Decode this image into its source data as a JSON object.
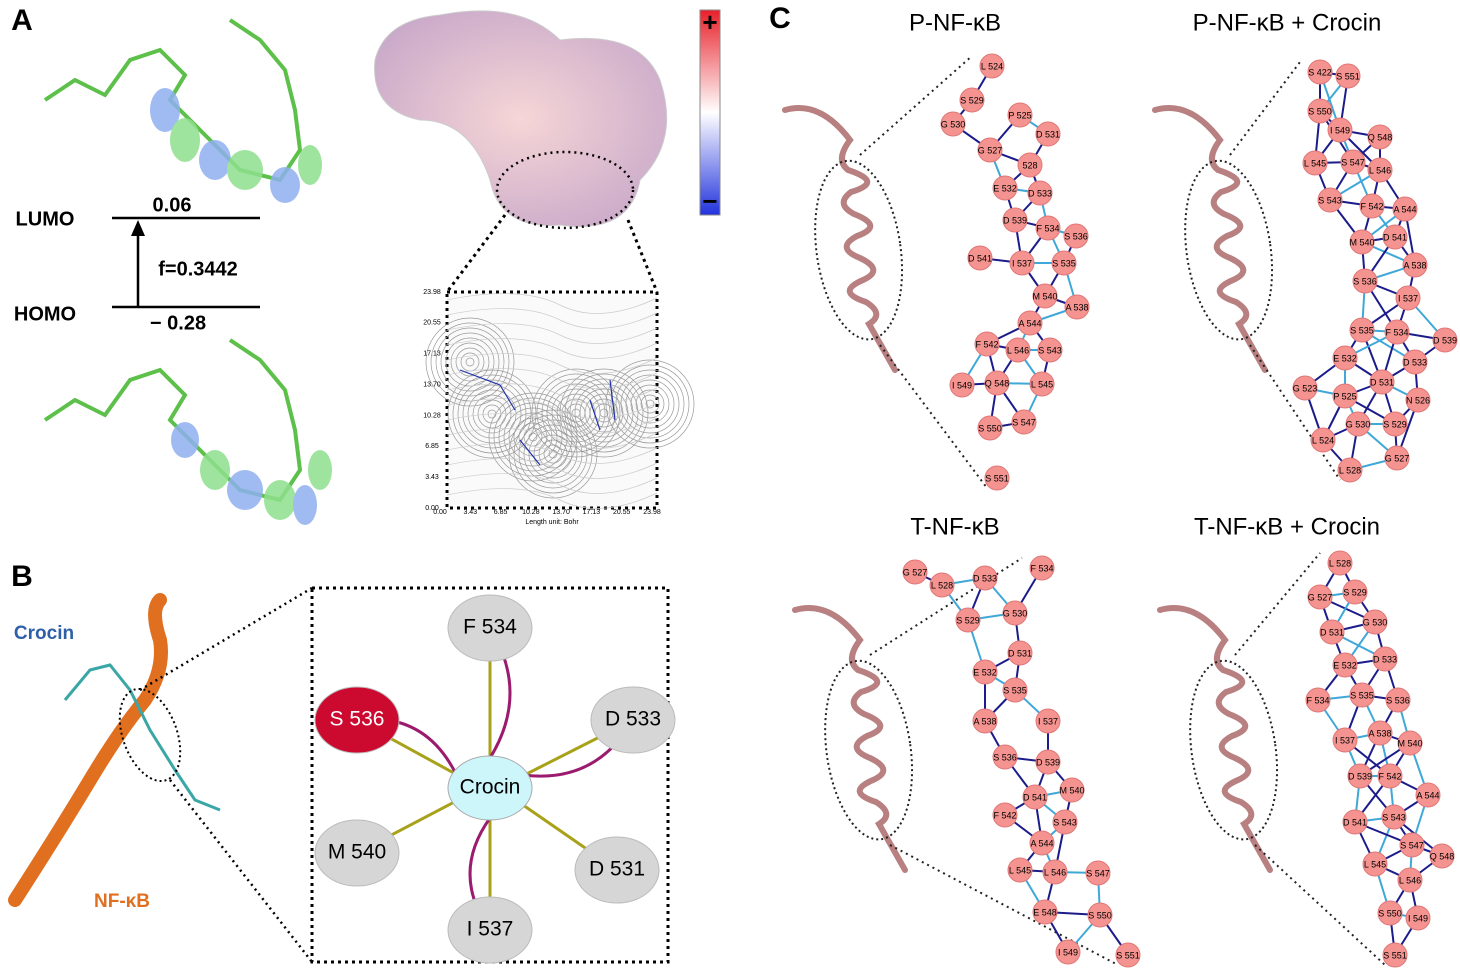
{
  "panel_letters": [
    "A",
    "B",
    "C"
  ],
  "orbital": {
    "lumo_label": "LUMO",
    "lumo_value": "0.06",
    "homo_label": "HOMO",
    "homo_value": "− 0.28",
    "oscillator": "f=0.3442"
  },
  "esp_scale": {
    "plus": "+",
    "minus": "−"
  },
  "contour": {
    "ticks": [
      "0.00",
      "3.43",
      "6.85",
      "10.28",
      "13.70",
      "17.13",
      "20.55",
      "23.98"
    ],
    "unit": "Length unit: Bohr"
  },
  "panel_b": {
    "ligand_label": "Crocin",
    "protein_label": "NF-κB",
    "center": "Crocin",
    "residues": [
      "F 534",
      "S 536",
      "D 533",
      "M 540",
      "D 531",
      "I 537"
    ]
  },
  "networks": [
    {
      "title": "P-NF-κB",
      "nodes": [
        "L 524",
        "S 529",
        "P 525",
        "G 530",
        "D 531",
        "G 527",
        "528",
        "E 532",
        "D 533",
        "D 539",
        "F 534",
        "S 536",
        "D 541",
        "I 537",
        "S 535",
        "M 540",
        "A 538",
        "A 544",
        "F 542",
        "L 546",
        "S 543",
        "I 549",
        "Q 548",
        "L 545",
        "S 550",
        "S 547",
        "S 551"
      ]
    },
    {
      "title": "P-NF-κB + Crocin",
      "nodes": [
        "S 422",
        "S 551",
        "S 550",
        "I 549",
        "Q 548",
        "L 545",
        "S 547",
        "L 546",
        "S 543",
        "F 542",
        "A 544",
        "M 540",
        "D 541",
        "A 538",
        "S 536",
        "I 537",
        "S 535",
        "F 534",
        "D 539",
        "E 532",
        "D 533",
        "D 531",
        "G 523",
        "P 525",
        "N 526",
        "G 530",
        "S 529",
        "L 524",
        "L 528",
        "G 527"
      ]
    },
    {
      "title": "T-NF-κB",
      "nodes": [
        "G 527",
        "L 528",
        "D 533",
        "F 534",
        "G 530",
        "S 529",
        "D 531",
        "E 532",
        "S 535",
        "A 538",
        "I 537",
        "S 536",
        "D 539",
        "M 540",
        "D 541",
        "F 542",
        "S 543",
        "A 544",
        "L 545",
        "L 546",
        "S 547",
        "E 548",
        "S 550",
        "I 549",
        "S 551"
      ]
    },
    {
      "title": "T-NF-κB + Crocin",
      "nodes": [
        "L 528",
        "G 527",
        "S 529",
        "G 530",
        "D 531",
        "D 533",
        "E 532",
        "F 534",
        "S 535",
        "S 536",
        "A 538",
        "I 537",
        "M 540",
        "D 539",
        "F 542",
        "A 544",
        "S 543",
        "D 541",
        "S 547",
        "Q 548",
        "L 545",
        "L 546",
        "S 550",
        "I 549",
        "S 551"
      ]
    }
  ]
}
